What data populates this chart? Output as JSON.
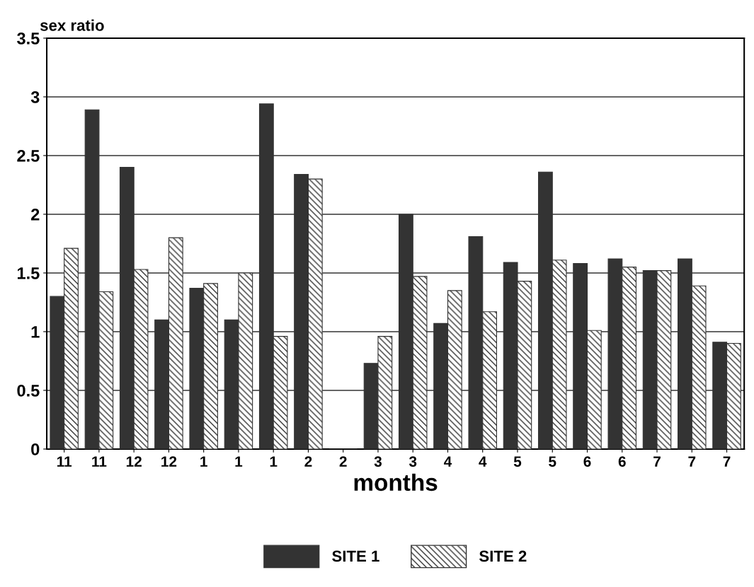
{
  "chart_data": {
    "type": "bar",
    "ylabel": "sex ratio",
    "xlabel": "months",
    "categories": [
      "11",
      "11",
      "12",
      "12",
      "1",
      "1",
      "1",
      "2",
      "2",
      "3",
      "3",
      "4",
      "4",
      "5",
      "5",
      "6",
      "6",
      "7",
      "7",
      "7"
    ],
    "series": [
      {
        "name": "SITE 1",
        "color": "#333333",
        "values": [
          1.3,
          2.89,
          2.4,
          1.1,
          1.37,
          1.1,
          2.94,
          2.34,
          0,
          0.73,
          2.0,
          1.07,
          1.81,
          1.59,
          2.36,
          1.58,
          1.62,
          1.52,
          1.62,
          0.91
        ]
      },
      {
        "name": "SITE 2",
        "color": "#333333",
        "values": [
          1.71,
          1.34,
          1.53,
          1.8,
          1.41,
          1.5,
          0.96,
          2.3,
          0,
          0.96,
          1.47,
          1.35,
          1.17,
          1.43,
          1.61,
          1.01,
          1.55,
          1.52,
          1.39,
          0.9
        ]
      }
    ],
    "ylim": [
      0,
      3.5
    ],
    "yticks": [
      0,
      0.5,
      1,
      1.5,
      2,
      2.5,
      3,
      3.5
    ],
    "grid": "y",
    "legend": "bottom"
  }
}
